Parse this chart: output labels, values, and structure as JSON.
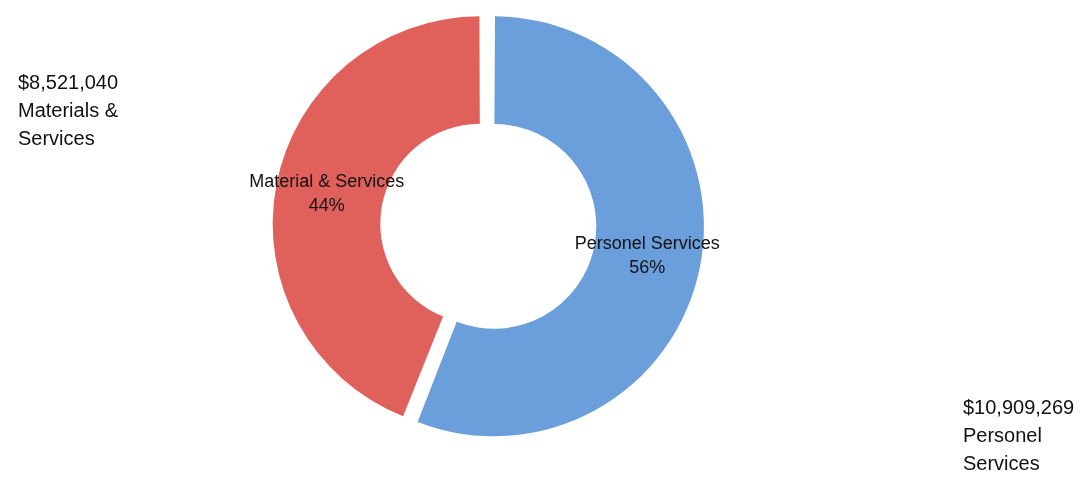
{
  "chart_data": {
    "type": "donut",
    "categories": [
      "Material & Services",
      "Personel Services"
    ],
    "values": [
      44,
      56
    ],
    "value_labels": [
      "44%",
      "56%"
    ],
    "colors": [
      "#e0605c",
      "#6a9fdc"
    ],
    "legend": false,
    "annotations": [
      "$8,521,040\nMaterials &\nServices",
      "$10,909,269\nPersonel\nServices"
    ]
  }
}
